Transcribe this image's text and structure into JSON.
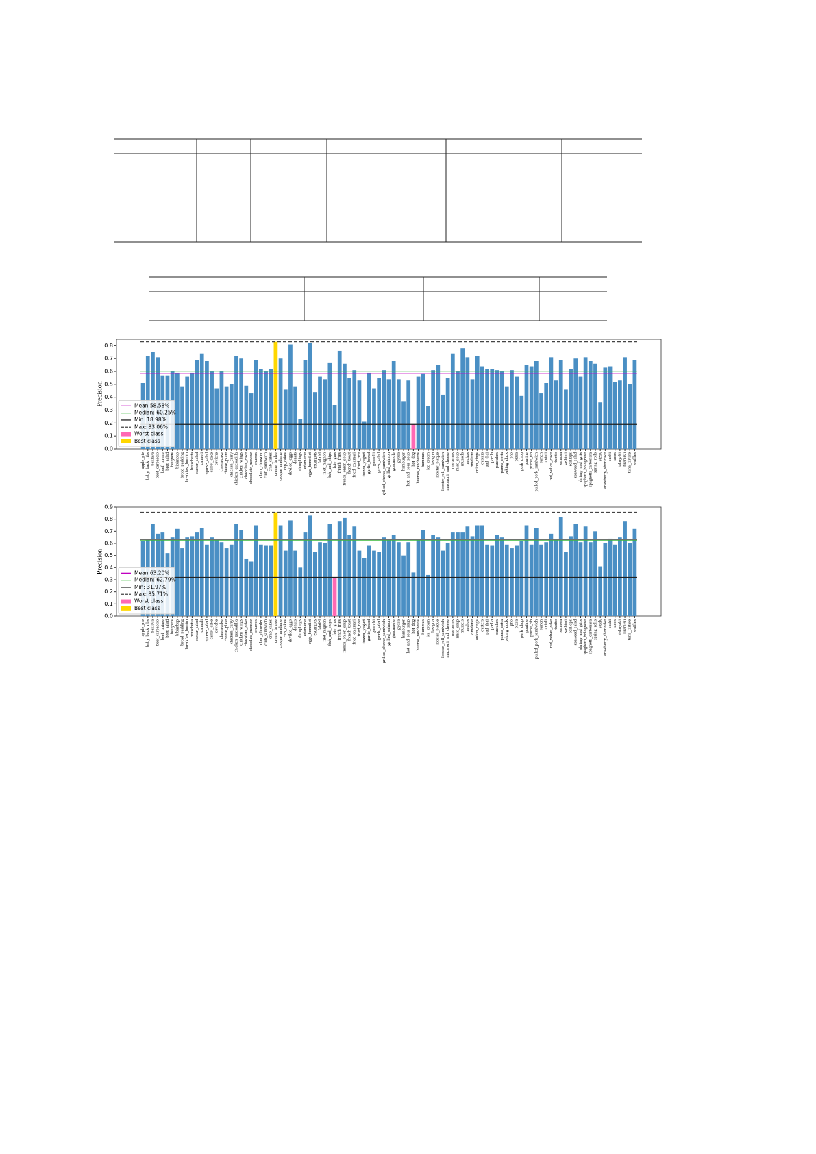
{
  "chart_data": [
    {
      "type": "bar",
      "ylabel": "Precision",
      "categories": [
        "apple_pie",
        "baby_back_ribs",
        "baklava",
        "beef_carpaccio",
        "beef_tartare",
        "beet_salad",
        "beignets",
        "bibimbap",
        "bread_pudding",
        "breakfast_burrito",
        "bruschetta",
        "caesar_salad",
        "cannoli",
        "caprese_salad",
        "carrot_cake",
        "ceviche",
        "cheesecake",
        "cheese_plate",
        "chicken_curry",
        "chicken_quesadilla",
        "chicken_wings",
        "chocolate_cake",
        "chocolate_mousse",
        "churros",
        "clam_chowder",
        "club_sandwich",
        "crab_cakes",
        "creme_brulee",
        "croque_madame",
        "cup_cakes",
        "deviled_eggs",
        "donuts",
        "dumplings",
        "edamame",
        "eggs_benedict",
        "escargots",
        "falafel",
        "filet_mignon",
        "fish_and_chips",
        "foie_gras",
        "french_fries",
        "french_onion_soup",
        "french_toast",
        "fried_calamari",
        "fried_rice",
        "frozen_yogurt",
        "garlic_bread",
        "gnocchi",
        "greek_salad",
        "grilled_cheese_sandwich",
        "grilled_salmon",
        "guacamole",
        "gyoza",
        "hamburger",
        "hot_and_sour_soup",
        "hot_dog",
        "huevos_rancheros",
        "hummus",
        "ice_cream",
        "lasagna",
        "lobster_bisque",
        "lobster_roll_sandwich",
        "macaroni_and_cheese",
        "macarons",
        "miso_soup",
        "mussels",
        "nachos",
        "omelette",
        "onion_rings",
        "oysters",
        "pad_thai",
        "paella",
        "pancakes",
        "panna_cotta",
        "peking_duck",
        "pho",
        "pizza",
        "pork_chop",
        "poutine",
        "prime_rib",
        "pulled_pork_sandwich",
        "ramen",
        "ravioli",
        "red_velvet_cake",
        "risotto",
        "samosa",
        "sashimi",
        "scallops",
        "seaweed_salad",
        "shrimp_and_grits",
        "spaghetti_bolognese",
        "spaghetti_carbonara",
        "spring_rolls",
        "steak",
        "strawberry_shortcake",
        "sushi",
        "tacos",
        "takoyaki",
        "tiramisu",
        "tuna_tartare",
        "waffles"
      ],
      "values": [
        0.51,
        0.72,
        0.75,
        0.71,
        0.57,
        0.57,
        0.6,
        0.59,
        0.48,
        0.56,
        0.59,
        0.69,
        0.74,
        0.68,
        0.6,
        0.47,
        0.6,
        0.48,
        0.5,
        0.72,
        0.7,
        0.49,
        0.43,
        0.69,
        0.62,
        0.6,
        0.62,
        0.8306,
        0.7,
        0.46,
        0.81,
        0.48,
        0.23,
        0.69,
        0.82,
        0.44,
        0.56,
        0.54,
        0.67,
        0.34,
        0.76,
        0.66,
        0.55,
        0.61,
        0.53,
        0.21,
        0.59,
        0.47,
        0.55,
        0.61,
        0.54,
        0.68,
        0.54,
        0.37,
        0.53,
        0.1898,
        0.56,
        0.58,
        0.33,
        0.61,
        0.65,
        0.42,
        0.55,
        0.74,
        0.6,
        0.78,
        0.71,
        0.54,
        0.72,
        0.64,
        0.62,
        0.62,
        0.61,
        0.6,
        0.48,
        0.61,
        0.56,
        0.41,
        0.65,
        0.64,
        0.68,
        0.43,
        0.51,
        0.71,
        0.53,
        0.69,
        0.46,
        0.62,
        0.7,
        0.56,
        0.71,
        0.68,
        0.66,
        0.36,
        0.63,
        0.64,
        0.52,
        0.53,
        0.71,
        0.5,
        0.69
      ],
      "color": "#4a8fc4",
      "ylim": [
        0,
        0.85
      ],
      "yticks": [
        {
          "value": 0,
          "label": "0.0"
        },
        0.1,
        0.2,
        0.3,
        0.4,
        0.5,
        0.6,
        0.7,
        0.8
      ],
      "reference_lines": [
        {
          "label": "Mean 58.58%",
          "value": 0.5858,
          "color": "#c000c0",
          "style": "solid"
        },
        {
          "label": "Median: 60.25%",
          "value": 0.6025,
          "color": "#3cb83c",
          "style": "solid"
        },
        {
          "label": "Min: 18.98%",
          "value": 0.1898,
          "color": "#222222",
          "style": "solid"
        },
        {
          "label": "Max: 83.06%",
          "value": 0.8306,
          "color": "#444444",
          "style": "dashed"
        }
      ],
      "highlights": [
        {
          "label": "Worst class",
          "category": "hot_dog",
          "color": "#ff69b4"
        },
        {
          "label": "Best class",
          "category": "creme_brulee",
          "color": "#ffd700"
        }
      ],
      "legend": "lower left"
    },
    {
      "type": "bar",
      "ylabel": "Precision",
      "categories": [
        "apple_pie",
        "baby_back_ribs",
        "baklava",
        "beef_carpaccio",
        "beef_tartare",
        "beet_salad",
        "beignets",
        "bibimbap",
        "bread_pudding",
        "breakfast_burrito",
        "bruschetta",
        "caesar_salad",
        "cannoli",
        "caprese_salad",
        "carrot_cake",
        "ceviche",
        "cheesecake",
        "cheese_plate",
        "chicken_curry",
        "chicken_quesadilla",
        "chicken_wings",
        "chocolate_cake",
        "chocolate_mousse",
        "churros",
        "clam_chowder",
        "club_sandwich",
        "crab_cakes",
        "creme_brulee",
        "croque_madame",
        "cup_cakes",
        "deviled_eggs",
        "donuts",
        "dumplings",
        "edamame",
        "eggs_benedict",
        "escargots",
        "falafel",
        "filet_mignon",
        "fish_and_chips",
        "foie_gras",
        "french_fries",
        "french_onion_soup",
        "french_toast",
        "fried_calamari",
        "fried_rice",
        "frozen_yogurt",
        "garlic_bread",
        "gnocchi",
        "greek_salad",
        "grilled_cheese_sandwich",
        "grilled_salmon",
        "guacamole",
        "gyoza",
        "hamburger",
        "hot_and_sour_soup",
        "hot_dog",
        "huevos_rancheros",
        "hummus",
        "ice_cream",
        "lasagna",
        "lobster_bisque",
        "lobster_roll_sandwich",
        "macaroni_and_cheese",
        "macarons",
        "miso_soup",
        "mussels",
        "nachos",
        "omelette",
        "onion_rings",
        "oysters",
        "pad_thai",
        "paella",
        "pancakes",
        "panna_cotta",
        "peking_duck",
        "pho",
        "pizza",
        "pork_chop",
        "poutine",
        "prime_rib",
        "pulled_pork_sandwich",
        "ramen",
        "ravioli",
        "red_velvet_cake",
        "risotto",
        "samosa",
        "sashimi",
        "scallops",
        "seaweed_salad",
        "shrimp_and_grits",
        "spaghetti_bolognese",
        "spaghetti_carbonara",
        "spring_rolls",
        "steak",
        "strawberry_shortcake",
        "sushi",
        "tacos",
        "takoyaki",
        "tiramisu",
        "tuna_tartare",
        "waffles"
      ],
      "values": [
        0.62,
        0.63,
        0.76,
        0.68,
        0.69,
        0.52,
        0.65,
        0.72,
        0.56,
        0.65,
        0.66,
        0.69,
        0.73,
        0.59,
        0.65,
        0.63,
        0.61,
        0.56,
        0.59,
        0.76,
        0.71,
        0.47,
        0.45,
        0.75,
        0.59,
        0.58,
        0.58,
        0.8571,
        0.75,
        0.54,
        0.79,
        0.54,
        0.4,
        0.69,
        0.83,
        0.53,
        0.61,
        0.6,
        0.76,
        0.3197,
        0.78,
        0.81,
        0.67,
        0.74,
        0.54,
        0.48,
        0.58,
        0.54,
        0.53,
        0.65,
        0.63,
        0.67,
        0.61,
        0.5,
        0.61,
        0.36,
        0.63,
        0.71,
        0.34,
        0.67,
        0.65,
        0.54,
        0.6,
        0.69,
        0.69,
        0.69,
        0.74,
        0.66,
        0.75,
        0.75,
        0.59,
        0.58,
        0.67,
        0.65,
        0.59,
        0.56,
        0.58,
        0.62,
        0.75,
        0.59,
        0.73,
        0.59,
        0.61,
        0.68,
        0.63,
        0.82,
        0.53,
        0.66,
        0.76,
        0.61,
        0.74,
        0.61,
        0.7,
        0.41,
        0.6,
        0.64,
        0.59,
        0.65,
        0.78,
        0.6,
        0.72
      ],
      "color": "#4a8fc4",
      "ylim": [
        0,
        0.9
      ],
      "yticks": [
        {
          "value": 0,
          "label": "0.0"
        },
        0.1,
        0.2,
        0.3,
        0.4,
        0.5,
        0.6,
        0.7,
        0.8,
        0.9
      ],
      "reference_lines": [
        {
          "label": "Mean 63.20%",
          "value": 0.632,
          "color": "#c000c0",
          "style": "solid"
        },
        {
          "label": "Median: 62.79%",
          "value": 0.6279,
          "color": "#3cb83c",
          "style": "solid"
        },
        {
          "label": "Min: 31.97%",
          "value": 0.3197,
          "color": "#222222",
          "style": "solid"
        },
        {
          "label": "Max: 85.71%",
          "value": 0.8571,
          "color": "#444444",
          "style": "dashed"
        }
      ],
      "highlights": [
        {
          "label": "Worst class",
          "category": "foie_gras",
          "color": "#ff69b4"
        },
        {
          "label": "Best class",
          "category": "creme_brulee",
          "color": "#ffd700"
        }
      ],
      "legend": "lower left"
    }
  ]
}
